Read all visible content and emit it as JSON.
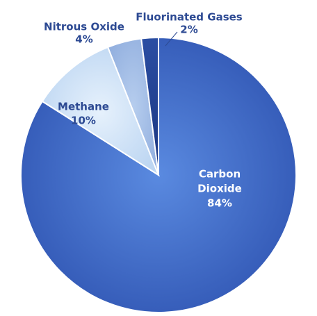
{
  "chart_data": {
    "type": "pie",
    "slices": [
      {
        "label": "Carbon Dioxide",
        "value": 84,
        "value_text": "84%",
        "color": "#3f6bc6",
        "label_lines": [
          "Carbon",
          "Dioxide"
        ]
      },
      {
        "label": "Methane",
        "value": 10,
        "value_text": "10%",
        "color": "#c5def5",
        "label_lines": [
          "Methane"
        ]
      },
      {
        "label": "Nitrous Oxide",
        "value": 4,
        "value_text": "4%",
        "color": "#a5bfe6",
        "label_lines": [
          "Nitrous Oxide"
        ]
      },
      {
        "label": "Fluorinated Gases",
        "value": 2,
        "value_text": "2%",
        "color": "#1f3f8f",
        "label_lines": [
          "Fluorinated Gases"
        ]
      }
    ],
    "legend": "none",
    "start_angle": "12 o'clock",
    "direction": "clockwise"
  }
}
